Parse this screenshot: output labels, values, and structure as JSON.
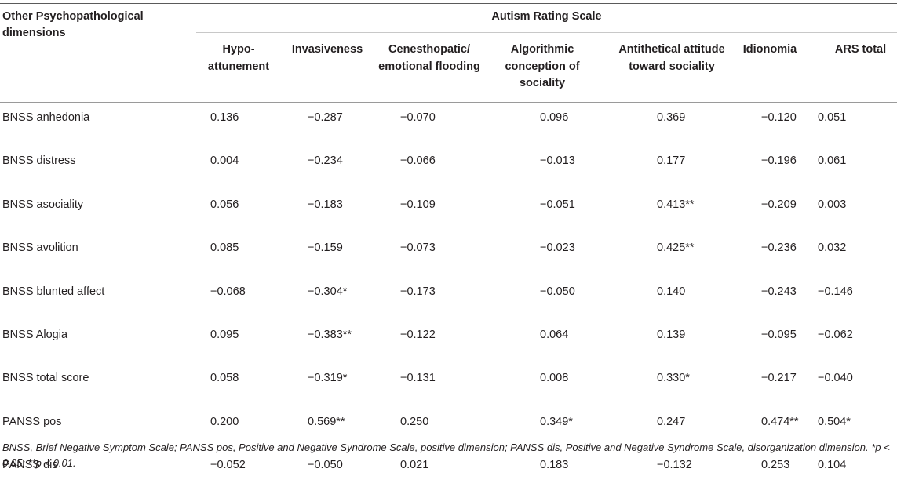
{
  "header": {
    "row_label": "Other Psychopathological dimensions",
    "scale_title": "Autism Rating Scale",
    "columns": [
      "Hypo-attunement",
      "Invasiveness",
      "Cenesthopatic/ emotional flooding",
      "Algorithmic conception of sociality",
      "Antithetical attitude toward sociality",
      "Idionomia",
      "ARS total"
    ]
  },
  "rows": [
    {
      "label": "BNSS anhedonia",
      "values": [
        "0.136",
        "−0.287",
        "−0.070",
        "0.096",
        "0.369",
        "−0.120",
        "0.051"
      ]
    },
    {
      "label": "BNSS distress",
      "values": [
        "0.004",
        "−0.234",
        "−0.066",
        "−0.013",
        "0.177",
        "−0.196",
        "0.061"
      ]
    },
    {
      "label": "BNSS asociality",
      "values": [
        "0.056",
        "−0.183",
        "−0.109",
        "−0.051",
        "0.413**",
        "−0.209",
        "0.003"
      ]
    },
    {
      "label": "BNSS avolition",
      "values": [
        "0.085",
        "−0.159",
        "−0.073",
        "−0.023",
        "0.425**",
        "−0.236",
        "0.032"
      ]
    },
    {
      "label": "BNSS blunted affect",
      "values": [
        "−0.068",
        "−0.304*",
        "−0.173",
        "−0.050",
        "0.140",
        "−0.243",
        "−0.146"
      ]
    },
    {
      "label": "BNSS Alogia",
      "values": [
        "0.095",
        "−0.383**",
        "−0.122",
        "0.064",
        "0.139",
        "−0.095",
        "−0.062"
      ]
    },
    {
      "label": "BNSS total score",
      "values": [
        "0.058",
        "−0.319*",
        "−0.131",
        "0.008",
        "0.330*",
        "−0.217",
        "−0.040"
      ]
    },
    {
      "label": "PANSS pos",
      "values": [
        "0.200",
        "0.569**",
        "0.250",
        "0.349*",
        "0.247",
        "0.474**",
        "0.504*"
      ]
    },
    {
      "label": "PANSS dis",
      "values": [
        "−0.052",
        "−0.050",
        "0.021",
        "0.183",
        "−0.132",
        "0.253",
        "0.104"
      ]
    }
  ],
  "footnote": "BNSS, Brief Negative Symptom Scale; PANSS pos, Positive and Negative Syndrome Scale, positive dimension; PANSS dis, Positive and Negative Syndrome Scale, disorganization dimension. *p < 0.05; **p < 0.01."
}
